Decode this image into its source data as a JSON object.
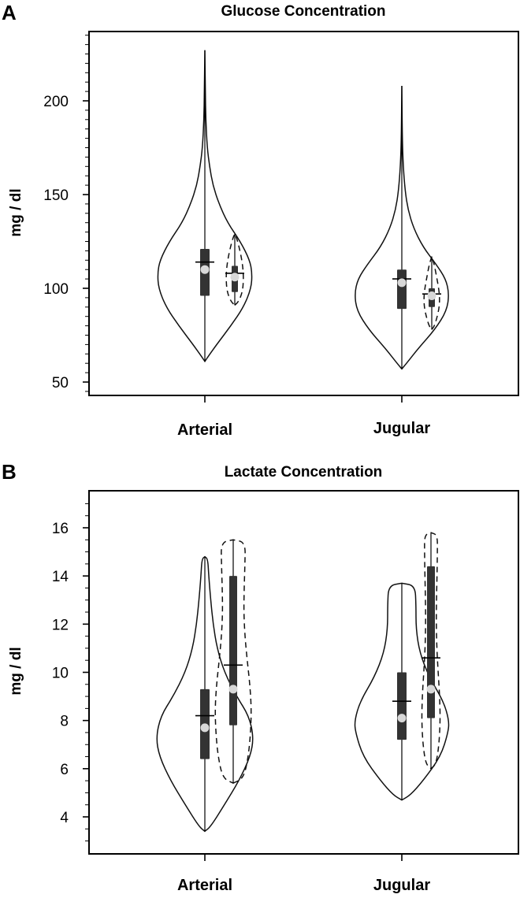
{
  "chart_data": [
    {
      "panel": "A",
      "type": "violin",
      "title": "Glucose Concentration",
      "ylabel": "mg / dl",
      "ylim": [
        40,
        240
      ],
      "yticks": [
        50,
        100,
        150,
        200
      ],
      "categories": [
        "Arterial",
        "Jugular"
      ],
      "series": [
        {
          "style": "solid",
          "groups": [
            {
              "category": "Arterial",
              "min": 61,
              "max": 227,
              "q1": 96,
              "median": 110,
              "q3": 121,
              "mean": 114,
              "density": [
                [
                  61,
                  0.0
                ],
                [
                  64,
                  0.08
                ],
                [
                  70,
                  0.25
                ],
                [
                  80,
                  0.55
                ],
                [
                  90,
                  0.82
                ],
                [
                  100,
                  0.98
                ],
                [
                  108,
                  1.0
                ],
                [
                  115,
                  0.95
                ],
                [
                  125,
                  0.75
                ],
                [
                  135,
                  0.48
                ],
                [
                  145,
                  0.3
                ],
                [
                  155,
                  0.17
                ],
                [
                  165,
                  0.1
                ],
                [
                  175,
                  0.05
                ],
                [
                  190,
                  0.02
                ],
                [
                  205,
                  0.01
                ],
                [
                  227,
                  0.0
                ]
              ]
            },
            {
              "category": "Jugular",
              "min": 57,
              "max": 208,
              "q1": 89,
              "median": 103,
              "q3": 110,
              "mean": 105,
              "density": [
                [
                  57,
                  0.0
                ],
                [
                  60,
                  0.1
                ],
                [
                  68,
                  0.35
                ],
                [
                  78,
                  0.7
                ],
                [
                  88,
                  0.95
                ],
                [
                  97,
                  1.0
                ],
                [
                  105,
                  0.93
                ],
                [
                  113,
                  0.72
                ],
                [
                  122,
                  0.45
                ],
                [
                  132,
                  0.25
                ],
                [
                  142,
                  0.13
                ],
                [
                  152,
                  0.07
                ],
                [
                  165,
                  0.03
                ],
                [
                  180,
                  0.01
                ],
                [
                  208,
                  0.0
                ]
              ]
            }
          ]
        },
        {
          "style": "dashed",
          "groups": [
            {
              "category": "Arterial",
              "min": 91,
              "max": 129,
              "q1": 98,
              "median": 106,
              "q3": 112,
              "mean": 108,
              "density": [
                [
                  91,
                  0.0
                ],
                [
                  93,
                  0.45
                ],
                [
                  98,
                  0.88
                ],
                [
                  104,
                  1.0
                ],
                [
                  110,
                  0.96
                ],
                [
                  116,
                  0.78
                ],
                [
                  122,
                  0.5
                ],
                [
                  127,
                  0.2
                ],
                [
                  129,
                  0.0
                ]
              ]
            },
            {
              "category": "Jugular",
              "min": 78,
              "max": 117,
              "q1": 90,
              "median": 96,
              "q3": 100,
              "mean": 97,
              "density": [
                [
                  78,
                  0.0
                ],
                [
                  80,
                  0.35
                ],
                [
                  85,
                  0.7
                ],
                [
                  90,
                  0.95
                ],
                [
                  95,
                  1.0
                ],
                [
                  100,
                  0.88
                ],
                [
                  106,
                  0.62
                ],
                [
                  112,
                  0.35
                ],
                [
                  115,
                  0.15
                ],
                [
                  117,
                  0.0
                ]
              ]
            }
          ]
        }
      ]
    },
    {
      "panel": "B",
      "type": "violin",
      "title": "Lactate Concentration",
      "ylabel": "mg / dl",
      "ylim": [
        2.5,
        17.5
      ],
      "yticks": [
        4,
        6,
        8,
        10,
        12,
        14,
        16
      ],
      "categories": [
        "Arterial",
        "Jugular"
      ],
      "series": [
        {
          "style": "solid",
          "groups": [
            {
              "category": "Arterial",
              "min": 3.4,
              "max": 14.8,
              "q1": 6.4,
              "median": 7.7,
              "q3": 9.3,
              "mean": 8.2,
              "density": [
                [
                  3.4,
                  0.0
                ],
                [
                  3.6,
                  0.12
                ],
                [
                  4.5,
                  0.4
                ],
                [
                  5.5,
                  0.7
                ],
                [
                  6.5,
                  0.93
                ],
                [
                  7.3,
                  1.0
                ],
                [
                  8.2,
                  0.9
                ],
                [
                  9.0,
                  0.65
                ],
                [
                  10.0,
                  0.4
                ],
                [
                  11.0,
                  0.25
                ],
                [
                  12.0,
                  0.17
                ],
                [
                  13.0,
                  0.12
                ],
                [
                  14.0,
                  0.08
                ],
                [
                  14.7,
                  0.06
                ],
                [
                  14.8,
                  0.0
                ]
              ]
            },
            {
              "category": "Jugular",
              "min": 4.7,
              "max": 13.7,
              "q1": 7.2,
              "median": 8.1,
              "q3": 10.0,
              "mean": 8.8,
              "density": [
                [
                  4.7,
                  0.0
                ],
                [
                  4.9,
                  0.18
                ],
                [
                  5.5,
                  0.45
                ],
                [
                  6.5,
                  0.82
                ],
                [
                  7.5,
                  0.98
                ],
                [
                  8.0,
                  1.0
                ],
                [
                  8.8,
                  0.88
                ],
                [
                  9.8,
                  0.58
                ],
                [
                  10.8,
                  0.38
                ],
                [
                  11.8,
                  0.3
                ],
                [
                  12.8,
                  0.3
                ],
                [
                  13.6,
                  0.28
                ],
                [
                  13.7,
                  0.0
                ]
              ]
            }
          ]
        },
        {
          "style": "dashed",
          "groups": [
            {
              "category": "Arterial",
              "min": 5.4,
              "max": 15.5,
              "q1": 7.8,
              "median": 9.3,
              "q3": 14.0,
              "mean": 10.3,
              "density": [
                [
                  5.4,
                  0.0
                ],
                [
                  5.6,
                  0.55
                ],
                [
                  6.5,
                  0.8
                ],
                [
                  7.5,
                  0.92
                ],
                [
                  8.5,
                  0.96
                ],
                [
                  9.5,
                  0.88
                ],
                [
                  10.5,
                  0.74
                ],
                [
                  11.5,
                  0.62
                ],
                [
                  12.5,
                  0.56
                ],
                [
                  13.5,
                  0.58
                ],
                [
                  14.5,
                  0.62
                ],
                [
                  15.4,
                  0.64
                ],
                [
                  15.5,
                  0.0
                ]
              ]
            },
            {
              "category": "Jugular",
              "min": 6.0,
              "max": 15.8,
              "q1": 8.1,
              "median": 9.3,
              "q3": 14.4,
              "mean": 10.6,
              "density": [
                [
                  6.0,
                  0.0
                ],
                [
                  6.2,
                  0.55
                ],
                [
                  7.0,
                  0.85
                ],
                [
                  8.0,
                  0.98
                ],
                [
                  9.0,
                  0.92
                ],
                [
                  10.0,
                  0.76
                ],
                [
                  11.0,
                  0.62
                ],
                [
                  12.0,
                  0.56
                ],
                [
                  13.0,
                  0.58
                ],
                [
                  14.0,
                  0.64
                ],
                [
                  15.0,
                  0.68
                ],
                [
                  15.7,
                  0.68
                ],
                [
                  15.8,
                  0.0
                ]
              ]
            }
          ]
        }
      ]
    }
  ]
}
